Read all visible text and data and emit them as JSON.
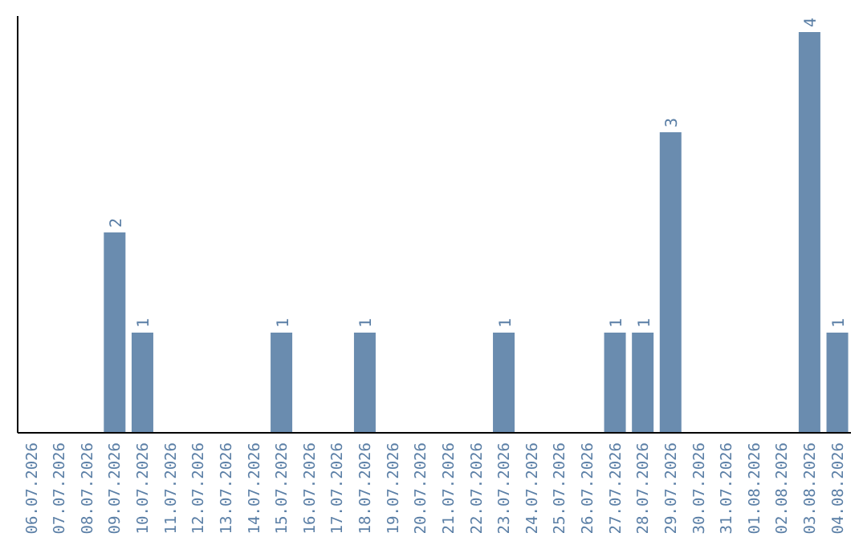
{
  "chart_data": {
    "type": "bar",
    "categories": [
      "06.07.2026",
      "07.07.2026",
      "08.07.2026",
      "09.07.2026",
      "10.07.2026",
      "11.07.2026",
      "12.07.2026",
      "13.07.2026",
      "14.07.2026",
      "15.07.2026",
      "16.07.2026",
      "17.07.2026",
      "18.07.2026",
      "19.07.2026",
      "20.07.2026",
      "21.07.2026",
      "22.07.2026",
      "23.07.2026",
      "24.07.2026",
      "25.07.2026",
      "26.07.2026",
      "27.07.2026",
      "28.07.2026",
      "29.07.2026",
      "30.07.2026",
      "31.07.2026",
      "01.08.2026",
      "02.08.2026",
      "03.08.2026",
      "04.08.2026"
    ],
    "values": [
      null,
      null,
      null,
      2,
      1,
      null,
      null,
      null,
      null,
      1,
      null,
      null,
      1,
      null,
      null,
      null,
      null,
      1,
      null,
      null,
      null,
      1,
      1,
      3,
      null,
      null,
      null,
      null,
      4,
      1
    ],
    "color": "#6a8caf",
    "data_labels": true,
    "tick_labels": "x",
    "grid": false
  }
}
